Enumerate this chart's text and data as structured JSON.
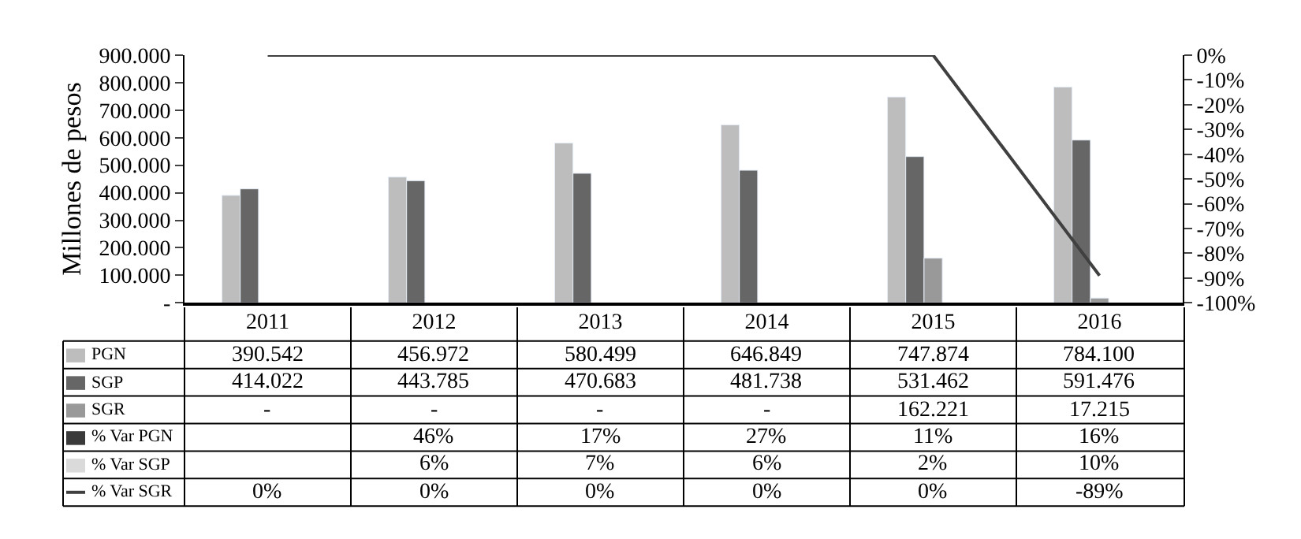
{
  "chart_data": {
    "type": "bar",
    "ylabel": "Millones de pesos",
    "categories": [
      "2011",
      "2012",
      "2013",
      "2014",
      "2015",
      "2016"
    ],
    "series": [
      {
        "name": "PGN",
        "color": "#bdbdbd",
        "values": [
          390542,
          456972,
          580499,
          646849,
          747874,
          784100
        ],
        "value_labels": [
          "390.542",
          "456.972",
          "580.499",
          "646.849",
          "747.874",
          "784.100"
        ]
      },
      {
        "name": "SGP",
        "color": "#666666",
        "values": [
          414022,
          443785,
          470683,
          481738,
          531462,
          591476
        ],
        "value_labels": [
          "414.022",
          "443.785",
          "470.683",
          "481.738",
          "531.462",
          "591.476"
        ]
      },
      {
        "name": "SGR",
        "color": "#999999",
        "values": [
          null,
          null,
          null,
          null,
          162221,
          17215
        ],
        "value_labels": [
          "-",
          "-",
          "-",
          "-",
          "162.221",
          "17.215"
        ]
      },
      {
        "name": "% Var PGN",
        "color": "#3a3a3a",
        "values": [
          null,
          null,
          null,
          null,
          null,
          null
        ],
        "value_labels": [
          null,
          "46%",
          "17%",
          "27%",
          "11%",
          "16%"
        ]
      },
      {
        "name": "% Var SGP",
        "color": "#dadada",
        "values": [
          null,
          null,
          null,
          null,
          null,
          null
        ],
        "value_labels": [
          null,
          "6%",
          "7%",
          "6%",
          "2%",
          "10%"
        ]
      },
      {
        "name": "% Var SGR",
        "type": "line",
        "axis": "y2",
        "color": "#404040",
        "values": [
          0,
          0,
          0,
          0,
          0,
          -89
        ],
        "value_labels": [
          "0%",
          "0%",
          "0%",
          "0%",
          "0%",
          "-89%"
        ]
      }
    ],
    "ylim": [
      0,
      900000
    ],
    "yticks": [
      {
        "value": 0,
        "label": "-"
      },
      {
        "value": 100000,
        "label": "100.000"
      },
      {
        "value": 200000,
        "label": "200.000"
      },
      {
        "value": 300000,
        "label": "300.000"
      },
      {
        "value": 400000,
        "label": "400.000"
      },
      {
        "value": 500000,
        "label": "500.000"
      },
      {
        "value": 600000,
        "label": "600.000"
      },
      {
        "value": 700000,
        "label": "700.000"
      },
      {
        "value": 800000,
        "label": "800.000"
      },
      {
        "value": 900000,
        "label": "900.000"
      }
    ],
    "y2lim": [
      -100,
      0
    ],
    "y2ticks": [
      {
        "value": 0,
        "label": "0%"
      },
      {
        "value": -10,
        "label": "-10%"
      },
      {
        "value": -20,
        "label": "-20%"
      },
      {
        "value": -30,
        "label": "-30%"
      },
      {
        "value": -40,
        "label": "-40%"
      },
      {
        "value": -50,
        "label": "-50%"
      },
      {
        "value": -60,
        "label": "-60%"
      },
      {
        "value": -70,
        "label": "-70%"
      },
      {
        "value": -80,
        "label": "-80%"
      },
      {
        "value": -90,
        "label": "-90%"
      },
      {
        "value": -100,
        "label": "-100%"
      }
    ],
    "legend": "bottom left"
  }
}
